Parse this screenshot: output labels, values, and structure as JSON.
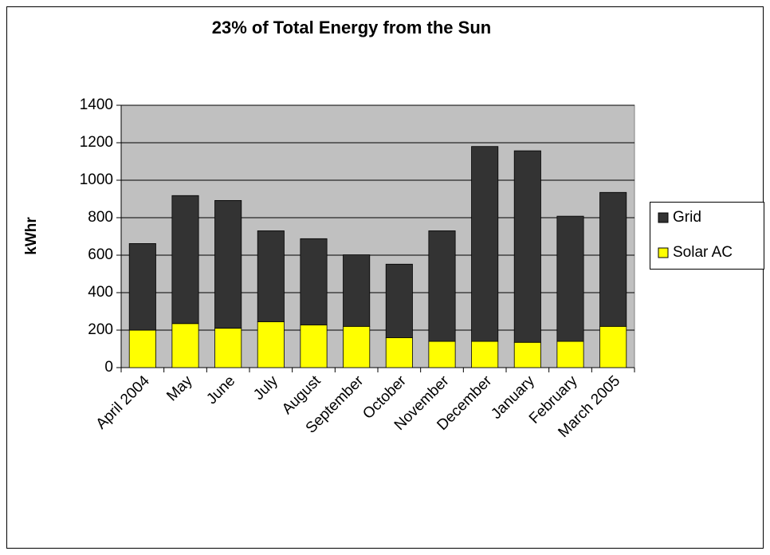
{
  "chart_data": {
    "type": "stacked_bar",
    "title": "23% of Total Energy from the Sun",
    "y_label": "kWhr",
    "categories": [
      "April 2004",
      "May",
      "June",
      "July",
      "August",
      "September",
      "October",
      "November",
      "December",
      "January",
      "February",
      "March 2005"
    ],
    "series": [
      {
        "name": "Solar AC",
        "color": "#ffff00",
        "values": [
          200,
          235,
          210,
          245,
          228,
          220,
          160,
          140,
          140,
          135,
          140,
          220
        ]
      },
      {
        "name": "Grid",
        "color": "#333333",
        "values": [
          462,
          683,
          682,
          485,
          460,
          382,
          392,
          590,
          1040,
          1022,
          668,
          715
        ]
      }
    ],
    "ylim": [
      0,
      1400
    ],
    "yticks": [
      0,
      200,
      400,
      600,
      800,
      1000,
      1200,
      1400
    ],
    "grid": true,
    "legend": "right"
  }
}
